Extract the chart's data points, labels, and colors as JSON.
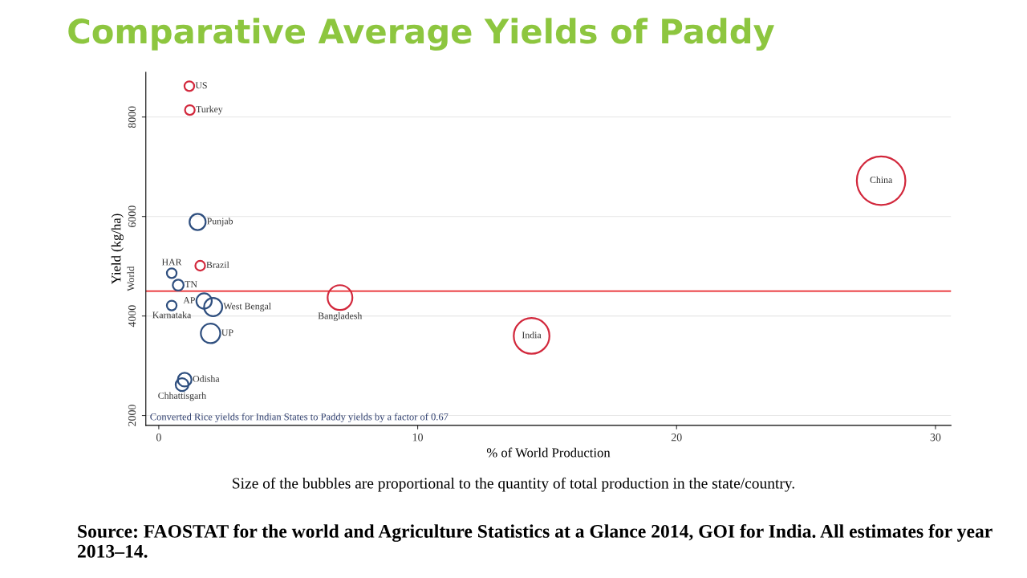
{
  "chart_data": {
    "type": "bubble",
    "title": "Comparative Average Yields of Paddy",
    "xlabel": "% of World Production",
    "ylabel": "Yield (kg/ha)",
    "series": [
      {
        "color": "#d2283c",
        "x": [
          1.18,
          1.2,
          27.9,
          1.6,
          7.0,
          14.4
        ],
        "values": [
          8620,
          8140,
          6720,
          5010,
          4370,
          3600
        ],
        "sizes": [
          0.04,
          0.04,
          1,
          0.04,
          0.26,
          0.54
        ]
      },
      {
        "color": "#2f4f7f",
        "x": [
          1.5,
          0.5,
          0.75,
          1.75,
          2.1,
          0.5,
          2.0,
          1.0,
          0.9
        ],
        "values": [
          5890,
          4860,
          4620,
          4300,
          4180,
          4210,
          3650,
          2720,
          2620
        ],
        "sizes": [
          0.11,
          0.04,
          0.05,
          0.1,
          0.14,
          0.04,
          0.16,
          0.08,
          0.07
        ]
      }
    ],
    "annotations": [
      {
        "text": "US",
        "x": 1.18,
        "y": 8620
      },
      {
        "text": "Turkey",
        "x": 1.2,
        "y": 8140
      },
      {
        "text": "China",
        "x": 27.9,
        "y": 6720
      },
      {
        "text": "Brazil",
        "x": 1.6,
        "y": 5010
      },
      {
        "text": "Bangladesh",
        "x": 7.0,
        "y": 4370
      },
      {
        "text": "India",
        "x": 14.4,
        "y": 3600
      },
      {
        "text": "Punjab",
        "x": 1.5,
        "y": 5890
      },
      {
        "text": "HAR",
        "x": 0.5,
        "y": 4860
      },
      {
        "text": "TN",
        "x": 0.75,
        "y": 4620
      },
      {
        "text": "AP",
        "x": 1.75,
        "y": 4300
      },
      {
        "text": "West Bengal",
        "x": 2.1,
        "y": 4180
      },
      {
        "text": "Karnataka",
        "x": 0.5,
        "y": 4210
      },
      {
        "text": "UP",
        "x": 2.0,
        "y": 3650
      },
      {
        "text": "Odisha",
        "x": 1.0,
        "y": 2720
      },
      {
        "text": "Chhattisgarh",
        "x": 0.9,
        "y": 2620
      },
      "Converted Rice yields for Indian States to Paddy yields by a factor of 0.67",
      "Size of the bubbles are proportional to the quantity of total production in the state/country.",
      "Source: FAOSTAT for the world and Agriculture Statistics at a Glance 2014, GOI for India. All estimates for year 2013–14."
    ],
    "ref_lines": [
      {
        "axis": "y",
        "value": 4500,
        "label": "World",
        "color": "#e8262b"
      }
    ],
    "xlim": [
      -0.5,
      30.6
    ],
    "ylim": [
      1800,
      8900
    ],
    "xticks": [
      0,
      10,
      20,
      30
    ],
    "yticks": [
      2000,
      4000,
      6000,
      8000
    ],
    "grid": "y"
  }
}
